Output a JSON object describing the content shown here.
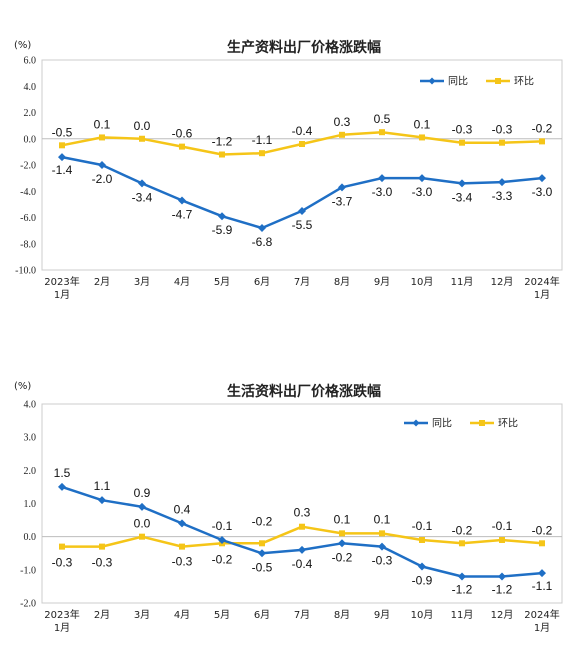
{
  "colors": {
    "yoy": "#1F6FC5",
    "mom": "#F5C518",
    "grid": "#cccccc"
  },
  "chart_data": [
    {
      "type": "line",
      "title": "生产资料出厂价格涨跌幅",
      "unit_label": "(%)",
      "categories": [
        [
          "2023年",
          "1月"
        ],
        [
          "2月"
        ],
        [
          "3月"
        ],
        [
          "4月"
        ],
        [
          "5月"
        ],
        [
          "6月"
        ],
        [
          "7月"
        ],
        [
          "8月"
        ],
        [
          "9月"
        ],
        [
          "10月"
        ],
        [
          "11月"
        ],
        [
          "12月"
        ],
        [
          "2024年",
          "1月"
        ]
      ],
      "ylim": [
        -10,
        6
      ],
      "yticks": [
        "6.0",
        "4.0",
        "2.0",
        "0.0",
        "-2.0",
        "-4.0",
        "-6.0",
        "-8.0",
        "-10.0"
      ],
      "yticks_values": [
        6,
        4,
        2,
        0,
        -2,
        -4,
        -6,
        -8,
        -10
      ],
      "legend_position": "top-right",
      "series": [
        {
          "name": "同比",
          "values": [
            -1.4,
            -2.0,
            -3.4,
            -4.7,
            -5.9,
            -6.8,
            -5.5,
            -3.7,
            -3.0,
            -3.0,
            -3.4,
            -3.3,
            -3.0
          ],
          "labels": [
            "-1.4",
            "-2.0",
            "-3.4",
            "-4.7",
            "-5.9",
            "-6.8",
            "-5.5",
            "-3.7",
            "-3.0",
            "-3.0",
            "-3.4",
            "-3.3",
            "-3.0"
          ]
        },
        {
          "name": "环比",
          "values": [
            -0.5,
            0.1,
            0.0,
            -0.6,
            -1.2,
            -1.1,
            -0.4,
            0.3,
            0.5,
            0.1,
            -0.3,
            -0.3,
            -0.2
          ],
          "labels": [
            "-0.5",
            "0.1",
            "0.0",
            "-0.6",
            "-1.2",
            "-1.1",
            "-0.4",
            "0.3",
            "0.5",
            "0.1",
            "-0.3",
            "-0.3",
            "-0.2"
          ]
        }
      ]
    },
    {
      "type": "line",
      "title": "生活资料出厂价格涨跌幅",
      "unit_label": "(%)",
      "categories": [
        [
          "2023年",
          "1月"
        ],
        [
          "2月"
        ],
        [
          "3月"
        ],
        [
          "4月"
        ],
        [
          "5月"
        ],
        [
          "6月"
        ],
        [
          "7月"
        ],
        [
          "8月"
        ],
        [
          "9月"
        ],
        [
          "10月"
        ],
        [
          "11月"
        ],
        [
          "12月"
        ],
        [
          "2024年",
          "1月"
        ]
      ],
      "ylim": [
        -2,
        4
      ],
      "yticks": [
        "4.0",
        "3.0",
        "2.0",
        "1.0",
        "0.0",
        "-1.0",
        "-2.0"
      ],
      "yticks_values": [
        4,
        3,
        2,
        1,
        0,
        -1,
        -2
      ],
      "legend_position": "top-right",
      "series": [
        {
          "name": "同比",
          "values": [
            1.5,
            1.1,
            0.9,
            0.4,
            -0.1,
            -0.5,
            -0.4,
            -0.2,
            -0.3,
            -0.9,
            -1.2,
            -1.2,
            -1.1
          ],
          "labels": [
            "1.5",
            "1.1",
            "0.9",
            "0.4",
            "-0.1",
            "-0.5",
            "-0.4",
            "-0.2",
            "-0.3",
            "-0.9",
            "-1.2",
            "-1.2",
            "-1.1"
          ]
        },
        {
          "name": "环比",
          "values": [
            -0.3,
            -0.3,
            0.0,
            -0.3,
            -0.2,
            -0.2,
            0.3,
            0.1,
            0.1,
            -0.1,
            -0.2,
            -0.1,
            -0.2
          ],
          "labels": [
            "-0.3",
            "-0.3",
            "0.0",
            "-0.3",
            "-0.2",
            "-0.2",
            "0.3",
            "0.1",
            "0.1",
            "-0.1",
            "-0.2",
            "-0.1",
            "-0.2"
          ]
        }
      ]
    }
  ]
}
